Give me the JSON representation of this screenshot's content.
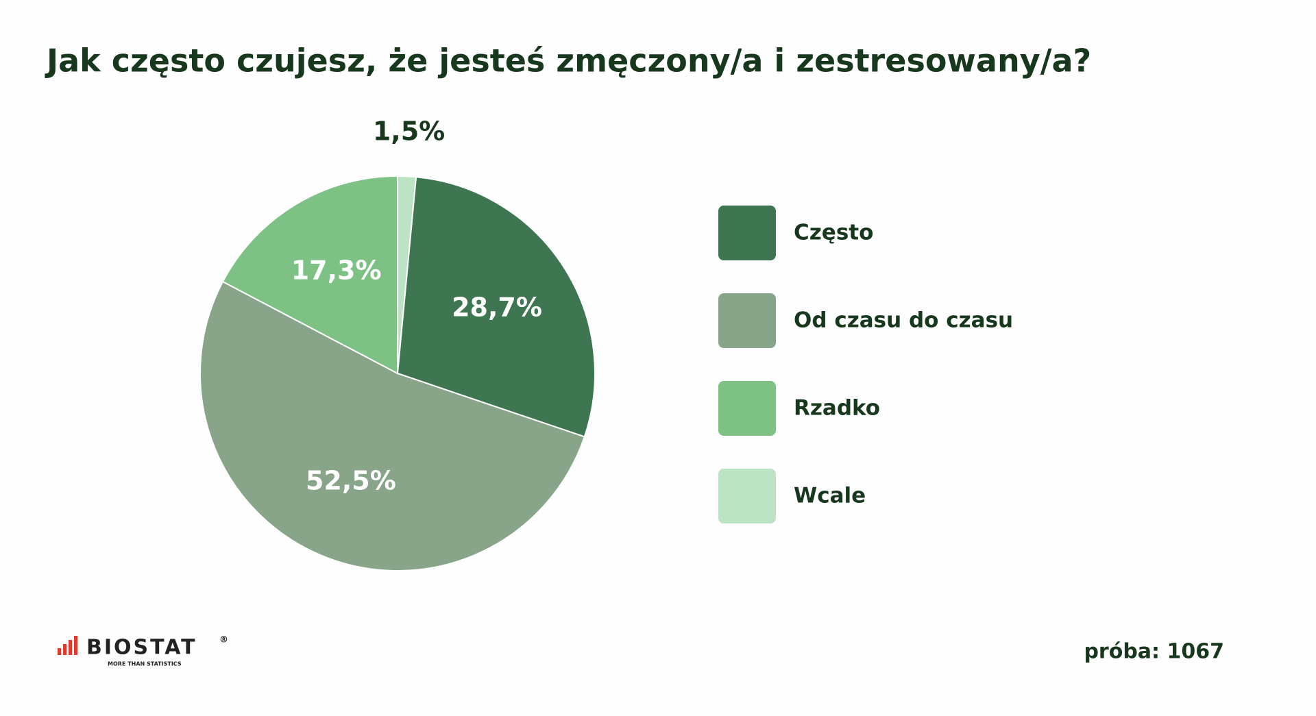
{
  "chart_data": {
    "type": "pie",
    "title": "Jak często czujesz, że jesteś zmęczony/a i zestresowany/a?",
    "categories": [
      "Wcale",
      "Często",
      "Od czasu do czasu",
      "Rzadko"
    ],
    "values": [
      1.5,
      28.7,
      52.5,
      17.3
    ],
    "value_labels": [
      "1,5%",
      "28,7%",
      "52,5%",
      "17,3%"
    ],
    "colors": [
      "#bde3c5",
      "#3d7650",
      "#88a58a",
      "#7dc184"
    ],
    "legend_order": [
      1,
      2,
      3,
      0
    ],
    "legend": "right"
  },
  "footer": {
    "sample": "próba: 1067",
    "logo": "BIOSTAT",
    "logo_mark": "®",
    "tagline": "MORE THAN STATISTICS"
  }
}
